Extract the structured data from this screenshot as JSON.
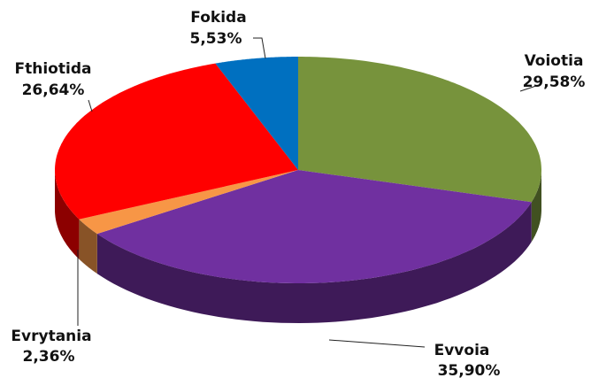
{
  "chart_data": {
    "type": "pie3d",
    "categories": [
      "Voiotia",
      "Evvoia",
      "Evrytania",
      "Fthiotida",
      "Fokida"
    ],
    "values": [
      29.58,
      35.9,
      2.36,
      26.64,
      5.53
    ],
    "value_labels": [
      "29,58%",
      "35,90%",
      "2,36%",
      "26,64%",
      "5,53%"
    ],
    "colors": [
      "#77933c",
      "#7030a0",
      "#f79646",
      "#ff0000",
      "#0070c0"
    ]
  }
}
